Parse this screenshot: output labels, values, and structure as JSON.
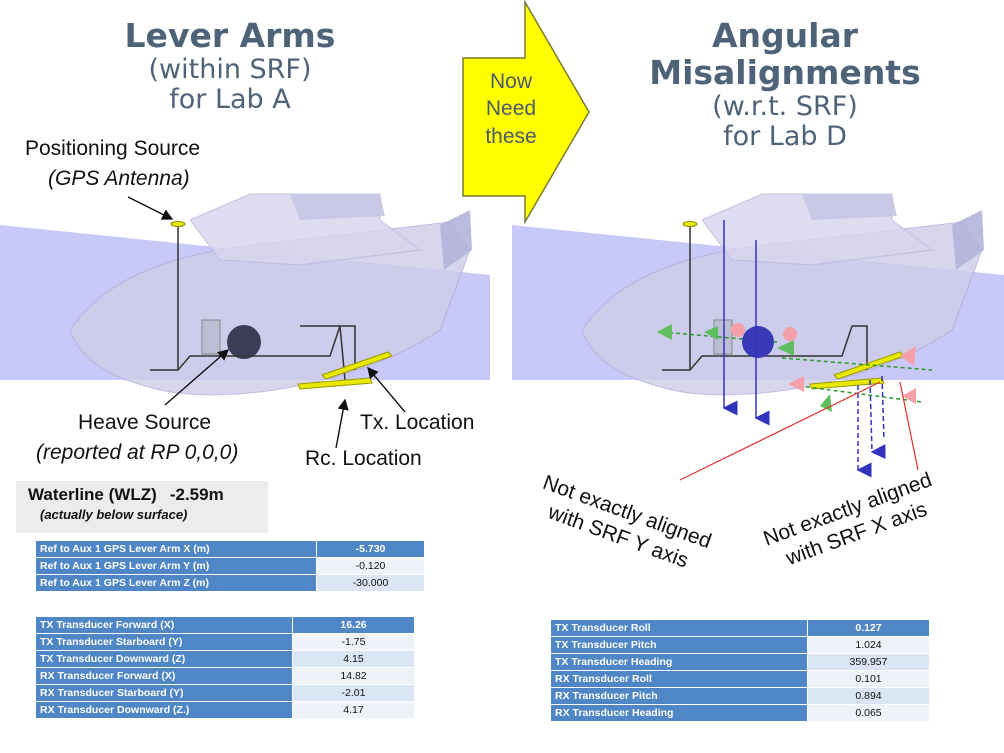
{
  "left_title": {
    "line1": "Lever Arms",
    "line2": "(within SRF)",
    "line3": "for Lab A"
  },
  "right_title": {
    "line1": "Angular Misalignments",
    "line2": "(w.r.t. SRF)",
    "line3": "for Lab D"
  },
  "arrow": {
    "line1": "Now",
    "line2": "Need",
    "line3": "these"
  },
  "labels": {
    "positioning_source": "Positioning Source",
    "gps_antenna": "(GPS Antenna)",
    "heave_source": "Heave Source",
    "heave_note": "(reported at RP 0,0,0)",
    "tx_location": "Tx. Location",
    "rc_location": "Rc. Location",
    "not_aligned_y_1": "Not exactly aligned",
    "not_aligned_y_2": "with SRF Y axis",
    "not_aligned_x_1": "Not exactly aligned",
    "not_aligned_x_2": "with SRF X axis"
  },
  "waterline": {
    "label": "Waterline (WLZ)",
    "value": "-2.59m",
    "note": "(actually below surface)"
  },
  "gps_lever_table": [
    {
      "label": "Ref to Aux 1 GPS Lever Arm X (m)",
      "value": "-5.730"
    },
    {
      "label": "Ref to Aux 1 GPS Lever Arm Y (m)",
      "value": "-0.120"
    },
    {
      "label": "Ref to Aux 1 GPS Lever Arm Z (m)",
      "value": "-30.000"
    }
  ],
  "transducer_lever_table": [
    {
      "label": "TX Transducer Forward (X)",
      "value": "16.26"
    },
    {
      "label": "TX Transducer Starboard (Y)",
      "value": "-1.75"
    },
    {
      "label": "TX Transducer Downward (Z)",
      "value": "4.15"
    },
    {
      "label": "RX Transducer Forward (X)",
      "value": "14.82"
    },
    {
      "label": "RX Transducer Starboard (Y)",
      "value": "-2.01"
    },
    {
      "label": "RX Transducer Downward (Z.)",
      "value": "4.17"
    }
  ],
  "misalignment_table": [
    {
      "label": "TX Transducer Roll",
      "value": "0.127"
    },
    {
      "label": "TX Transducer Pitch",
      "value": "1.024"
    },
    {
      "label": "TX Transducer Heading",
      "value": "359.957"
    },
    {
      "label": "RX Transducer Roll",
      "value": "0.101"
    },
    {
      "label": "RX Transducer Pitch",
      "value": "0.894"
    },
    {
      "label": "RX Transducer Heading",
      "value": "0.065"
    }
  ],
  "colors": {
    "title": "#4f6378",
    "arrow_fill": "#ffff00",
    "table_header": "#4f86c6",
    "hull": "#c9c7e4",
    "water_plane": "#b8b8f8",
    "transducer": "#e8e800",
    "red_leader": "#e03030"
  },
  "icons": [
    "boat-hull-graphic",
    "gps-antenna-icon",
    "heave-sphere-icon",
    "transducer-bar-icon",
    "axis-arrow-icon"
  ]
}
